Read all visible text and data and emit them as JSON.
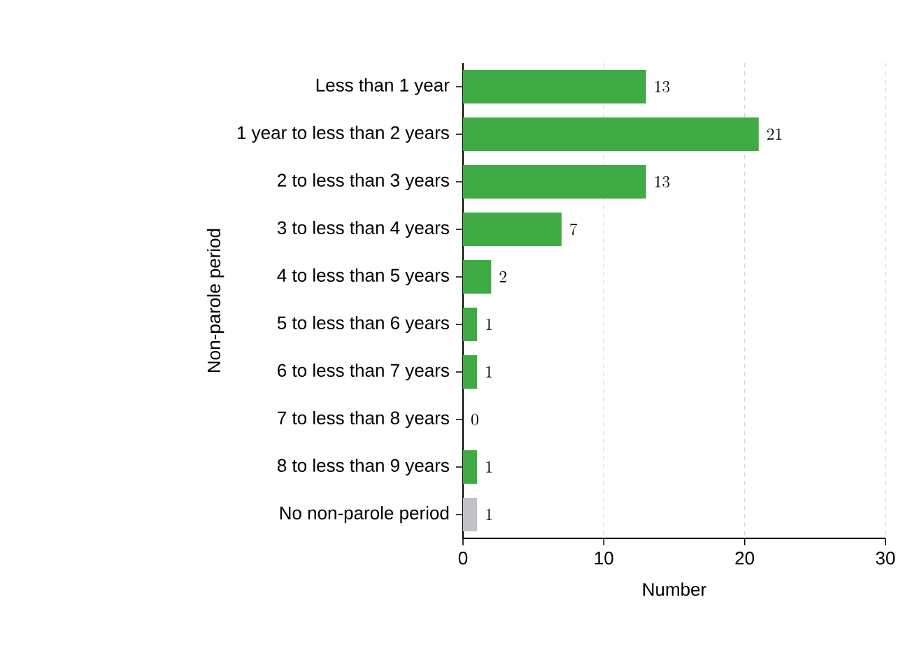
{
  "chart_data": {
    "type": "bar",
    "orientation": "horizontal",
    "xlabel": "Number",
    "ylabel": "Non-parole period",
    "categories": [
      "Less than 1 year",
      "1 year to less than 2 years",
      "2 to less than 3 years",
      "3 to less than 4 years",
      "4 to less than 5 years",
      "5 to less than 6 years",
      "6 to less than 7 years",
      "7 to less than 8 years",
      "8 to less than 9 years",
      "No non-parole period"
    ],
    "values": [
      13,
      21,
      13,
      7,
      2,
      1,
      1,
      0,
      1,
      1
    ],
    "colors": [
      "#40ab45",
      "#40ab45",
      "#40ab45",
      "#40ab45",
      "#40ab45",
      "#40ab45",
      "#40ab45",
      "#40ab45",
      "#40ab45",
      "#c2c1c8"
    ],
    "xlim": [
      0,
      30
    ],
    "xticks": [
      0,
      10,
      20,
      30
    ],
    "grid": "x",
    "data_labels": true
  }
}
